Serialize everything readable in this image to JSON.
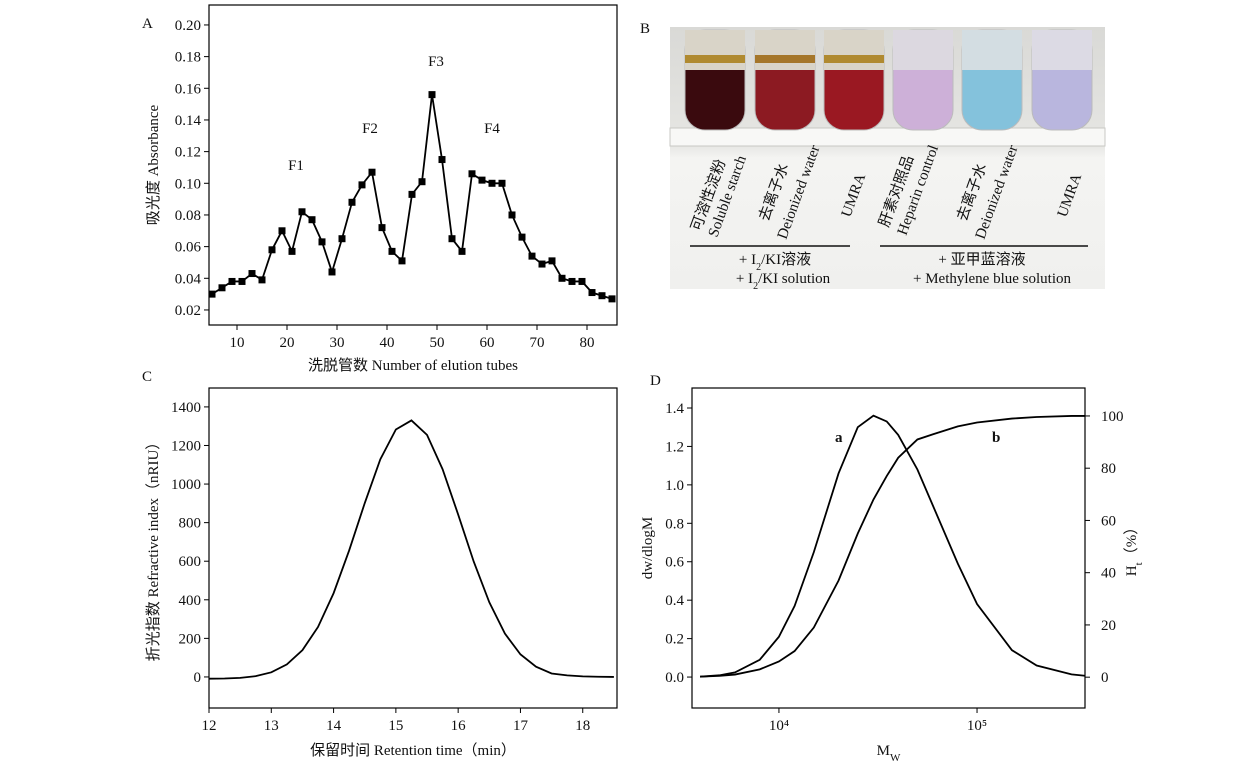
{
  "chart_data": [
    {
      "type": "line",
      "panel": "A",
      "xlabel": "洗脱管数 Number of elution tubes",
      "ylabel": "吸光度 Absorbance",
      "x": [
        5,
        7,
        9,
        11,
        13,
        15,
        17,
        19,
        21,
        23,
        25,
        27,
        29,
        31,
        33,
        35,
        37,
        39,
        41,
        43,
        45,
        47,
        49,
        51,
        53,
        55,
        57,
        59,
        61,
        63,
        65,
        67,
        69,
        71,
        73,
        75,
        77,
        79,
        81,
        83,
        85
      ],
      "series": [
        {
          "color": "#000000",
          "values": [
            0.03,
            0.034,
            0.038,
            0.038,
            0.043,
            0.039,
            0.058,
            0.07,
            0.057,
            0.082,
            0.077,
            0.063,
            0.044,
            0.065,
            0.088,
            0.099,
            0.107,
            0.072,
            0.057,
            0.051,
            0.093,
            0.101,
            0.156,
            0.115,
            0.065,
            0.057,
            0.106,
            0.102,
            0.1,
            0.1,
            0.08,
            0.066,
            0.054,
            0.049,
            0.051,
            0.04,
            0.038,
            0.038,
            0.031,
            0.029,
            0.027
          ]
        }
      ],
      "markers": "square",
      "annotations": [
        "F1",
        "F2",
        "F3",
        "F4"
      ],
      "xlim": [
        4.4,
        86
      ],
      "xticks": [
        10,
        20,
        30,
        40,
        50,
        60,
        70,
        80
      ],
      "ylim": [
        0.0105,
        0.2126
      ],
      "yticks": [
        {
          "value": 0.02,
          "label": "0.02"
        },
        {
          "value": 0.04,
          "label": "0.04"
        },
        {
          "value": 0.06,
          "label": "0.06"
        },
        {
          "value": 0.08,
          "label": "0.08"
        },
        {
          "value": 0.1,
          "label": "0.10"
        },
        {
          "value": 0.12,
          "label": "0.12"
        },
        {
          "value": 0.14,
          "label": "0.14"
        },
        {
          "value": 0.16,
          "label": "0.16"
        },
        {
          "value": 0.18,
          "label": "0.18"
        },
        {
          "value": 0.2,
          "label": "0.20"
        }
      ]
    },
    {
      "type": "line",
      "panel": "C",
      "xlabel": "保留时间 Retention time（min）",
      "ylabel": "折光指数 Refractive index（nRIU）",
      "x": [
        12,
        12.25,
        12.5,
        12.75,
        13,
        13.25,
        13.5,
        13.75,
        14,
        14.25,
        14.5,
        14.75,
        15,
        15.25,
        15.5,
        15.75,
        16,
        16.25,
        16.5,
        16.75,
        17,
        17.25,
        17.5,
        17.75,
        18,
        18.25,
        18.5
      ],
      "series": [
        {
          "color": "#000000",
          "values": [
            -9,
            -8,
            -5,
            4,
            24,
            65,
            139,
            259,
            434,
            656,
            901,
            1128,
            1283,
            1330,
            1255,
            1077,
            842,
            598,
            387,
            225,
            117,
            53,
            18,
            8,
            3,
            1,
            0
          ]
        }
      ],
      "xlim": [
        12,
        18.55
      ],
      "xticks": [
        12,
        13,
        14,
        15,
        16,
        17,
        18
      ],
      "ylim": [
        -161,
        1498
      ],
      "yticks": [
        0,
        200,
        400,
        600,
        800,
        1000,
        1200,
        1400
      ]
    },
    {
      "type": "line",
      "panel": "D",
      "xlabel": [
        "M",
        "W"
      ],
      "ylabel": "dw/dlogM",
      "y2label": [
        "H",
        "t",
        "（%）"
      ],
      "xscale": "log",
      "x": [
        4000,
        5000,
        6000,
        8000,
        10000,
        12000,
        15000,
        20000,
        25000,
        30000,
        35000,
        40000,
        50000,
        60000,
        80000,
        100000,
        150000,
        200000,
        300000,
        350000
      ],
      "series": [
        {
          "name": "a",
          "color": "#000000",
          "values": [
            0.002,
            0.009,
            0.024,
            0.09,
            0.21,
            0.37,
            0.65,
            1.06,
            1.3,
            1.36,
            1.33,
            1.26,
            1.08,
            0.89,
            0.59,
            0.38,
            0.14,
            0.06,
            0.014,
            0.007
          ]
        },
        {
          "name": "b",
          "color": "#000000",
          "axis": "y2",
          "values": [
            0.2,
            0.5,
            1,
            3,
            6,
            10,
            19,
            37,
            55,
            68,
            77,
            84,
            91,
            93,
            96,
            97.5,
            99,
            99.6,
            100,
            100
          ]
        }
      ],
      "xlim": [
        3640,
        350800
      ],
      "xticks": [
        {
          "value": 10000,
          "label": "10⁴"
        },
        {
          "value": 100000,
          "label": "10⁵"
        }
      ],
      "ylim": [
        -0.161,
        1.504
      ],
      "yticks": [
        {
          "value": 0,
          "label": "0.0"
        },
        {
          "value": 0.2,
          "label": "0.2"
        },
        {
          "value": 0.4,
          "label": "0.4"
        },
        {
          "value": 0.6,
          "label": "0.6"
        },
        {
          "value": 0.8,
          "label": "0.8"
        },
        {
          "value": 1.0,
          "label": "1.0"
        },
        {
          "value": 1.2,
          "label": "1.2"
        },
        {
          "value": 1.4,
          "label": "1.4"
        }
      ],
      "y2lim": [
        -11.8,
        110.7
      ],
      "y2ticks": [
        0,
        20,
        40,
        60,
        80,
        100
      ]
    }
  ],
  "photo": {
    "panel": "B",
    "tubes": [
      [
        "可溶性淀粉",
        "Soluble starch"
      ],
      [
        "去离子水",
        "Deionized water"
      ],
      [
        "UMRA"
      ],
      [
        "肝素对照品",
        "Heparin control"
      ],
      [
        "去离子水",
        "Deionized water"
      ],
      [
        "UMRA"
      ]
    ],
    "group1": [
      [
        "+ I",
        "2",
        "/KI溶液"
      ],
      [
        "+ I",
        "2",
        "/KI solution"
      ]
    ],
    "group2": [
      "+  亚甲蓝溶液",
      "+ Methylene blue solution"
    ]
  }
}
